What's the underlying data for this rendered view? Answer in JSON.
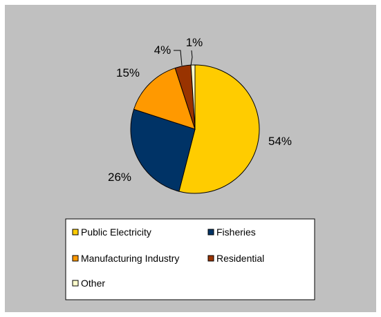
{
  "chart_data": {
    "type": "pie",
    "categories": [
      "Public Electricity",
      "Fisheries",
      "Manufacturing Industry",
      "Residential",
      "Other"
    ],
    "values": [
      54,
      26,
      15,
      4,
      1
    ],
    "labels": [
      "54%",
      "26%",
      "15%",
      "4%",
      "1%"
    ],
    "colors": [
      "#FFCC00",
      "#003366",
      "#FF9900",
      "#993300",
      "#FFFFCC"
    ],
    "start_angle_deg": 0,
    "direction": "clockwise",
    "legend_position": "bottom",
    "background": "#C0C0C0",
    "legend_columns": 2,
    "title": "",
    "xlabel": "",
    "ylabel": ""
  }
}
